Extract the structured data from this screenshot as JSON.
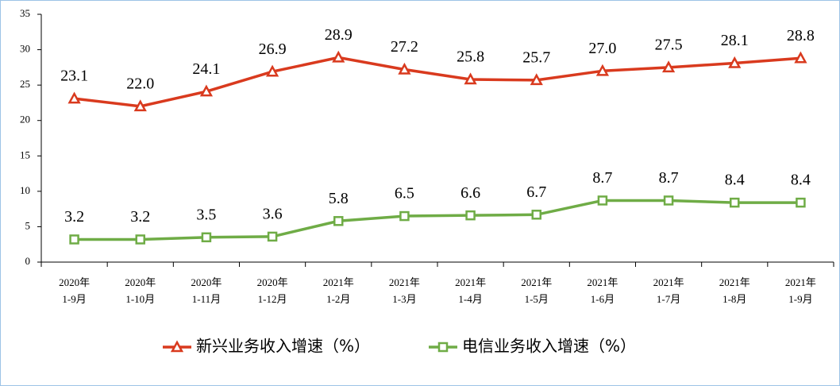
{
  "chart_data": {
    "type": "line",
    "categories": [
      [
        "2020年",
        "1-9月"
      ],
      [
        "2020年",
        "1-10月"
      ],
      [
        "2020年",
        "1-11月"
      ],
      [
        "2020年",
        "1-12月"
      ],
      [
        "2021年",
        "1-2月"
      ],
      [
        "2021年",
        "1-3月"
      ],
      [
        "2021年",
        "1-4月"
      ],
      [
        "2021年",
        "1-5月"
      ],
      [
        "2021年",
        "1-6月"
      ],
      [
        "2021年",
        "1-7月"
      ],
      [
        "2021年",
        "1-8月"
      ],
      [
        "2021年",
        "1-9月"
      ]
    ],
    "series": [
      {
        "name": "新兴业务收入增速（%）",
        "color": "#d93a1e",
        "marker": "triangle",
        "values": [
          23.1,
          22.0,
          24.1,
          26.9,
          28.9,
          27.2,
          25.8,
          25.7,
          27.0,
          27.5,
          28.1,
          28.8
        ],
        "value_labels": [
          "23.1",
          "22.0",
          "24.1",
          "26.9",
          "28.9",
          "27.2",
          "25.8",
          "25.7",
          "27.0",
          "27.5",
          "28.1",
          "28.8"
        ]
      },
      {
        "name": "电信业务收入增速（%）",
        "color": "#6fac46",
        "marker": "square",
        "values": [
          3.2,
          3.2,
          3.5,
          3.6,
          5.8,
          6.5,
          6.6,
          6.7,
          8.7,
          8.7,
          8.4,
          8.4
        ],
        "value_labels": [
          "3.2",
          "3.2",
          "3.5",
          "3.6",
          "5.8",
          "6.5",
          "6.6",
          "6.7",
          "8.7",
          "8.7",
          "8.4",
          "8.4"
        ]
      }
    ],
    "ylim": [
      0,
      35
    ],
    "yticks": [
      0,
      5,
      10,
      15,
      20,
      25,
      30,
      35
    ],
    "grid": false,
    "legend": "bottom"
  }
}
